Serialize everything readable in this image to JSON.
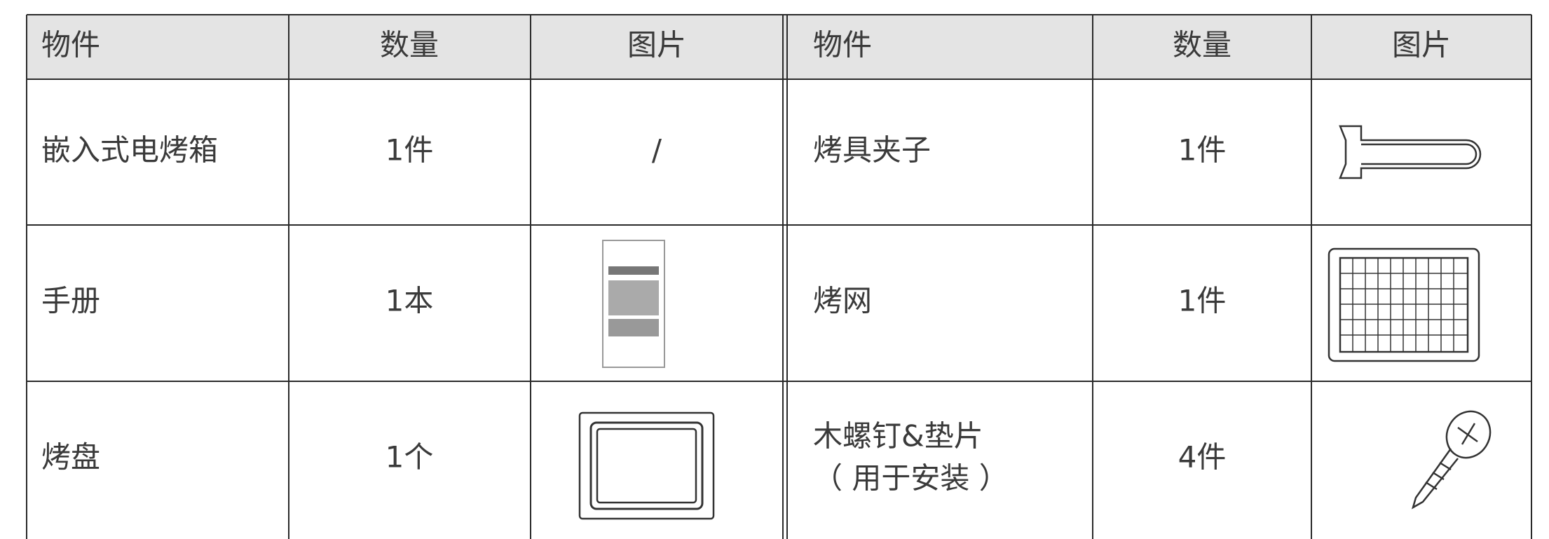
{
  "table": {
    "header": [
      "物件",
      "数量",
      "图片",
      "物件",
      "数量",
      "图片"
    ],
    "rows": [
      {
        "left": {
          "item": [
            "嵌入式电烤箱"
          ],
          "quantity": "1件",
          "picture": "/"
        },
        "right": {
          "item": [
            "烤具夹子"
          ],
          "quantity": "1件"
        }
      },
      {
        "left": {
          "item": [
            "手册"
          ],
          "quantity": "1本"
        },
        "right": {
          "item": [
            "烤网"
          ],
          "quantity": "1件"
        }
      },
      {
        "left": {
          "item": [
            "烤盘"
          ],
          "quantity": "1个"
        },
        "right": {
          "item": [
            "木螺钉&垫片",
            "（ 用于安装 ）"
          ],
          "quantity": "4件"
        }
      }
    ]
  }
}
